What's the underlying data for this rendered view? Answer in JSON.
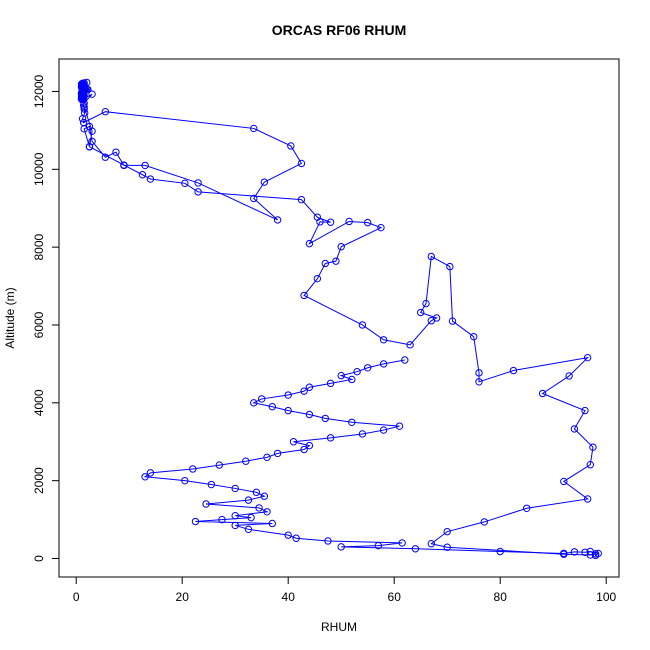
{
  "chart_data": {
    "type": "line",
    "title": "ORCAS RF06 RHUM",
    "xlabel": "RHUM",
    "ylabel": "Altitude (m)",
    "xlim": [
      0,
      100
    ],
    "ylim": [
      0,
      12500
    ],
    "xticks": [
      0,
      20,
      40,
      60,
      80,
      100
    ],
    "yticks": [
      0,
      2000,
      4000,
      6000,
      8000,
      10000,
      12000
    ],
    "grid": false,
    "color": "#0000ff",
    "series": [
      {
        "x": [
          2.0,
          1.5,
          1.2,
          1.3,
          1.0,
          1.4,
          1.1,
          1.2,
          1.5,
          1.3,
          1.6,
          1.2,
          1.0,
          1.3,
          1.5,
          1.1,
          1.4,
          2.0,
          2.2,
          1.8,
          1.6,
          1.4,
          1.2,
          1.5,
          1.3,
          1.1,
          1.2,
          1.0,
          1.3,
          1.2,
          1.0,
          1.4,
          1.1,
          1.2,
          1.5,
          1.1,
          1.2,
          1.0,
          1.3,
          1.2,
          1.4,
          1.3,
          1.1,
          1.0,
          1.2,
          3.0,
          1.5,
          1.4,
          1.5,
          1.6,
          1.2,
          1.4,
          5.5,
          33.5,
          40.5,
          42.5,
          35.5,
          33.5,
          38,
          23,
          13,
          9,
          7.5,
          5.5,
          3,
          2.5,
          1.5,
          2.5,
          3,
          1.5
        ],
        "y": [
          12230,
          12220,
          12210,
          12200,
          12190,
          12180,
          12170,
          12160,
          12150,
          12140,
          12130,
          12120,
          12110,
          12100,
          12090,
          12080,
          12070,
          12060,
          12050,
          12040,
          12030,
          12020,
          12010,
          12000,
          11990,
          11980,
          11970,
          11960,
          11950,
          11940,
          11930,
          11920,
          11910,
          11900,
          11890,
          11880,
          11870,
          11860,
          11850,
          11840,
          11830,
          11820,
          11810,
          11800,
          11790,
          11930,
          11700,
          11650,
          11550,
          11450,
          11300,
          11200,
          11480,
          11050,
          10600,
          10150,
          9670,
          9250,
          8700,
          9650,
          10100,
          10100,
          10440,
          10310,
          10720,
          11100,
          11040,
          10580,
          10980,
          11600
        ]
      },
      {
        "x": [
          2.5,
          9,
          12.5,
          14,
          20.5,
          23,
          42.5,
          45.5,
          48,
          46,
          44,
          51.5,
          55,
          57.5,
          50,
          49,
          47,
          45.5,
          43,
          54,
          58,
          63,
          67,
          68,
          65,
          66,
          67,
          70.5,
          71,
          75,
          76,
          76,
          82.5,
          96.5,
          93,
          88,
          96,
          94,
          97.5,
          97,
          92,
          96.5,
          85,
          77,
          70,
          67,
          70,
          92,
          97,
          98,
          98,
          98.5,
          97,
          96,
          94,
          92
        ],
        "y": [
          10580,
          10110,
          9860,
          9750,
          9640,
          9420,
          9220,
          8770,
          8640,
          8650,
          8090,
          8660,
          8630,
          8500,
          8010,
          7640,
          7580,
          7190,
          6760,
          6000,
          5620,
          5490,
          6110,
          6180,
          6320,
          6550,
          7760,
          7500,
          6100,
          5700,
          4770,
          4540,
          4830,
          5160,
          4690,
          4240,
          3800,
          3330,
          2860,
          2410,
          1980,
          1530,
          1290,
          940,
          690,
          380,
          290,
          110,
          90,
          120,
          80,
          130,
          180,
          160,
          170,
          130
        ]
      },
      {
        "x": [
          92,
          80,
          64,
          50,
          57,
          61.5,
          47.5,
          41.5,
          40,
          32.5,
          30,
          37,
          22.5,
          27.5,
          33,
          30,
          36,
          34.5,
          24.5,
          32.5,
          35.5,
          34,
          30,
          25.5,
          20.5,
          13,
          14,
          22,
          27,
          32,
          36,
          38,
          43,
          44,
          41,
          48,
          54,
          58,
          61,
          52,
          47,
          44,
          40,
          37,
          33.5,
          35,
          40,
          43,
          44,
          48,
          52,
          50,
          53,
          55,
          58,
          62
        ],
        "y": [
          130,
          180,
          250,
          300,
          330,
          400,
          450,
          520,
          600,
          750,
          850,
          900,
          950,
          1000,
          1050,
          1100,
          1200,
          1300,
          1400,
          1500,
          1600,
          1700,
          1800,
          1900,
          2000,
          2100,
          2200,
          2300,
          2400,
          2500,
          2600,
          2700,
          2800,
          2900,
          3000,
          3100,
          3200,
          3300,
          3400,
          3500,
          3600,
          3700,
          3800,
          3900,
          4000,
          4100,
          4200,
          4300,
          4400,
          4500,
          4600,
          4700,
          4800,
          4900,
          5000,
          5100
        ]
      }
    ]
  }
}
